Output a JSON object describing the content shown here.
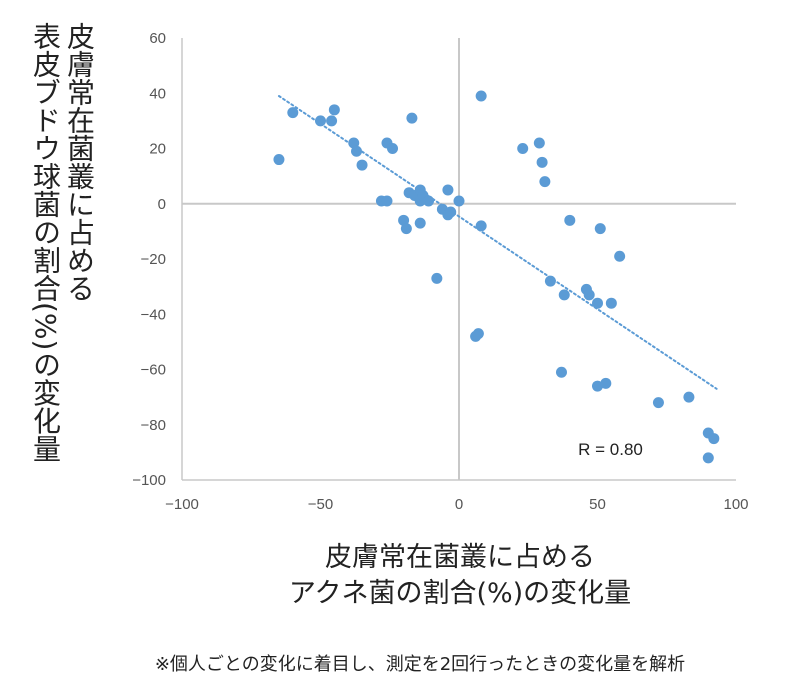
{
  "chart_data": {
    "type": "scatter",
    "xlabel_lines": [
      "皮膚常在菌叢に占める",
      "アクネ菌の割合(%)の変化量"
    ],
    "ylabel_lines": [
      "皮膚常在菌叢に占める",
      "表皮ブドウ球菌の割合(%)の変化量"
    ],
    "xlim": [
      -100,
      100
    ],
    "ylim": [
      -100,
      60
    ],
    "xticks": [
      -100,
      -50,
      0,
      50,
      100
    ],
    "yticks": [
      -100,
      -80,
      -60,
      -40,
      -20,
      0,
      20,
      40,
      60
    ],
    "grid": false,
    "annotation": "R = 0.80",
    "trendline": {
      "style": "dotted-linear",
      "x": [
        -65,
        93
      ],
      "y": [
        39,
        -67
      ]
    },
    "point_color": "#5b9bd5",
    "trend_color": "#5b9bd5",
    "points": [
      {
        "x": -65,
        "y": 16
      },
      {
        "x": -60,
        "y": 33
      },
      {
        "x": -50,
        "y": 30
      },
      {
        "x": -46,
        "y": 30
      },
      {
        "x": -45,
        "y": 34
      },
      {
        "x": -38,
        "y": 22
      },
      {
        "x": -37,
        "y": 19
      },
      {
        "x": -35,
        "y": 14
      },
      {
        "x": -26,
        "y": 22
      },
      {
        "x": -24,
        "y": 20
      },
      {
        "x": -17,
        "y": 31
      },
      {
        "x": -28,
        "y": 1
      },
      {
        "x": -26,
        "y": 1
      },
      {
        "x": -20,
        "y": -6
      },
      {
        "x": -19,
        "y": -9
      },
      {
        "x": -18,
        "y": 4
      },
      {
        "x": -16,
        "y": 3
      },
      {
        "x": -14,
        "y": 5
      },
      {
        "x": -14,
        "y": 1
      },
      {
        "x": -14,
        "y": -7
      },
      {
        "x": -13,
        "y": 3
      },
      {
        "x": -11,
        "y": 1
      },
      {
        "x": -8,
        "y": -27
      },
      {
        "x": -6,
        "y": -2
      },
      {
        "x": -4,
        "y": -4
      },
      {
        "x": -4,
        "y": 5
      },
      {
        "x": -3,
        "y": -3
      },
      {
        "x": 0,
        "y": 1
      },
      {
        "x": 6,
        "y": -48
      },
      {
        "x": 7,
        "y": -47
      },
      {
        "x": 8,
        "y": -8
      },
      {
        "x": 8,
        "y": 39
      },
      {
        "x": 23,
        "y": 20
      },
      {
        "x": 29,
        "y": 22
      },
      {
        "x": 30,
        "y": 15
      },
      {
        "x": 31,
        "y": 8
      },
      {
        "x": 33,
        "y": -28
      },
      {
        "x": 37,
        "y": -61
      },
      {
        "x": 38,
        "y": -33
      },
      {
        "x": 40,
        "y": -6
      },
      {
        "x": 46,
        "y": -31
      },
      {
        "x": 47,
        "y": -33
      },
      {
        "x": 50,
        "y": -66
      },
      {
        "x": 50,
        "y": -36
      },
      {
        "x": 51,
        "y": -9
      },
      {
        "x": 53,
        "y": -65
      },
      {
        "x": 55,
        "y": -36
      },
      {
        "x": 58,
        "y": -19
      },
      {
        "x": 72,
        "y": -72
      },
      {
        "x": 83,
        "y": -70
      },
      {
        "x": 90,
        "y": -83
      },
      {
        "x": 90,
        "y": -92
      },
      {
        "x": 92,
        "y": -85
      }
    ]
  },
  "footnote": "※個人ごとの変化に着目し、測定を2回行ったときの変化量を解析"
}
